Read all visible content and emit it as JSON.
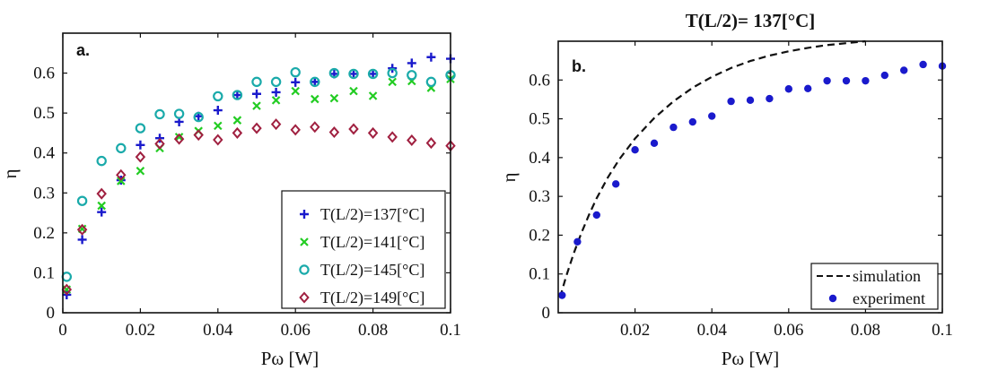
{
  "chart_data": [
    {
      "type": "scatter",
      "panel_label": "a.",
      "title": "",
      "xlabel": "Pω [W]",
      "ylabel": "η",
      "xlim": [
        0,
        0.1
      ],
      "ylim": [
        0,
        0.7
      ],
      "xticks": [
        "0",
        "0.02",
        "0.04",
        "0.06",
        "0.08",
        "0.1"
      ],
      "yticks": [
        "0",
        "0.1",
        "0.2",
        "0.3",
        "0.4",
        "0.5",
        "0.6"
      ],
      "legend_position": "bottom-right",
      "series": [
        {
          "name": "T(L/2)=137[°C]",
          "marker": "plus",
          "color": "#1a1acc",
          "x": [
            0.001,
            0.005,
            0.01,
            0.015,
            0.02,
            0.025,
            0.03,
            0.035,
            0.04,
            0.045,
            0.05,
            0.055,
            0.06,
            0.065,
            0.07,
            0.075,
            0.08,
            0.085,
            0.09,
            0.095,
            0.1
          ],
          "y": [
            0.045,
            0.183,
            0.252,
            0.332,
            0.42,
            0.437,
            0.478,
            0.492,
            0.507,
            0.545,
            0.548,
            0.552,
            0.577,
            0.578,
            0.598,
            0.598,
            0.598,
            0.612,
            0.625,
            0.64,
            0.636
          ]
        },
        {
          "name": "T(L/2)=141[°C]",
          "marker": "x",
          "color": "#22cc22",
          "x": [
            0.001,
            0.005,
            0.01,
            0.015,
            0.02,
            0.025,
            0.03,
            0.035,
            0.04,
            0.045,
            0.05,
            0.055,
            0.06,
            0.065,
            0.07,
            0.075,
            0.08,
            0.085,
            0.09,
            0.095,
            0.1
          ],
          "y": [
            0.058,
            0.21,
            0.268,
            0.33,
            0.355,
            0.412,
            0.44,
            0.455,
            0.468,
            0.482,
            0.518,
            0.532,
            0.555,
            0.535,
            0.537,
            0.555,
            0.543,
            0.578,
            0.58,
            0.563,
            0.585
          ]
        },
        {
          "name": "T(L/2)=145[°C]",
          "marker": "circle",
          "color": "#1aaaaa",
          "x": [
            0.001,
            0.005,
            0.01,
            0.015,
            0.02,
            0.025,
            0.03,
            0.035,
            0.04,
            0.045,
            0.05,
            0.055,
            0.06,
            0.065,
            0.07,
            0.075,
            0.08,
            0.085,
            0.09,
            0.095,
            0.1
          ],
          "y": [
            0.09,
            0.28,
            0.38,
            0.412,
            0.462,
            0.497,
            0.498,
            0.49,
            0.542,
            0.545,
            0.578,
            0.578,
            0.602,
            0.578,
            0.6,
            0.598,
            0.598,
            0.6,
            0.595,
            0.578,
            0.595
          ]
        },
        {
          "name": "T(L/2)=149[°C]",
          "marker": "diamond",
          "color": "#a02040",
          "x": [
            0.001,
            0.005,
            0.01,
            0.015,
            0.02,
            0.025,
            0.03,
            0.035,
            0.04,
            0.045,
            0.05,
            0.055,
            0.06,
            0.065,
            0.07,
            0.075,
            0.08,
            0.085,
            0.09,
            0.095,
            0.1
          ],
          "y": [
            0.058,
            0.208,
            0.298,
            0.345,
            0.39,
            0.423,
            0.435,
            0.445,
            0.433,
            0.45,
            0.462,
            0.472,
            0.458,
            0.465,
            0.452,
            0.46,
            0.45,
            0.44,
            0.432,
            0.425,
            0.418
          ]
        }
      ]
    },
    {
      "type": "scatter",
      "panel_label": "b.",
      "title": "T(L/2)= 137[°C]",
      "xlabel": "Pω [W]",
      "ylabel": "η",
      "xlim": [
        0,
        0.1
      ],
      "ylim": [
        0,
        0.7
      ],
      "xticks": [
        "0.02",
        "0.04",
        "0.06",
        "0.08",
        "0.1"
      ],
      "yticks": [
        "0",
        "0.1",
        "0.2",
        "0.3",
        "0.4",
        "0.5",
        "0.6"
      ],
      "legend_position": "bottom-right",
      "series": [
        {
          "name": "simulation",
          "kind": "dashed-line",
          "color": "#111111",
          "x": [
            0.0005,
            0.002,
            0.004,
            0.006,
            0.008,
            0.01,
            0.013,
            0.016,
            0.02,
            0.025,
            0.03,
            0.035,
            0.04,
            0.045,
            0.05,
            0.055,
            0.06,
            0.065,
            0.07,
            0.075,
            0.08
          ],
          "y": [
            0.04,
            0.092,
            0.152,
            0.205,
            0.252,
            0.295,
            0.35,
            0.397,
            0.449,
            0.502,
            0.545,
            0.58,
            0.608,
            0.631,
            0.649,
            0.663,
            0.674,
            0.683,
            0.69,
            0.695,
            0.7
          ]
        },
        {
          "name": "experiment",
          "marker": "star",
          "color": "#1a1acc",
          "x": [
            0.001,
            0.005,
            0.01,
            0.015,
            0.02,
            0.025,
            0.03,
            0.035,
            0.04,
            0.045,
            0.05,
            0.055,
            0.06,
            0.065,
            0.07,
            0.075,
            0.08,
            0.085,
            0.09,
            0.095,
            0.1
          ],
          "y": [
            0.045,
            0.183,
            0.252,
            0.332,
            0.42,
            0.437,
            0.478,
            0.492,
            0.507,
            0.545,
            0.548,
            0.552,
            0.577,
            0.578,
            0.598,
            0.598,
            0.598,
            0.612,
            0.625,
            0.64,
            0.636
          ]
        }
      ]
    }
  ]
}
